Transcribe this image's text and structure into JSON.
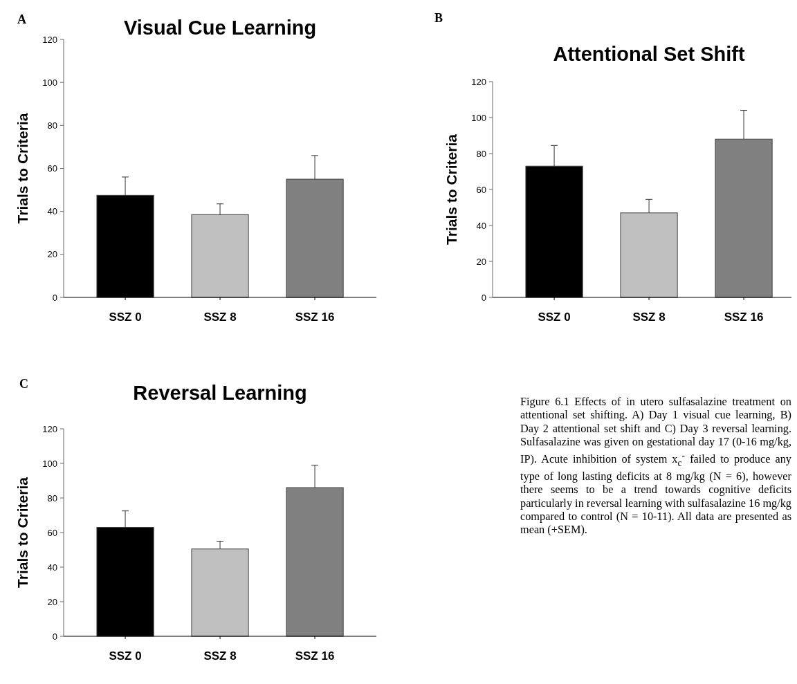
{
  "chart_data": [
    {
      "type": "bar",
      "title": "Visual Cue Learning",
      "ylabel": "Trials to Criteria",
      "categories": [
        "SSZ 0",
        "SSZ 8",
        "SSZ 16"
      ],
      "values": [
        47.5,
        38.5,
        55
      ],
      "errors": [
        [
          47.5,
          56
        ],
        [
          38.5,
          43.5
        ],
        [
          55,
          66
        ]
      ],
      "colors": [
        "#000000",
        "#c0c0c0",
        "#808080"
      ],
      "ylim": [
        0,
        120
      ],
      "yticks": [
        0,
        20,
        40,
        60,
        80,
        100,
        120
      ],
      "annotations": [
        "A"
      ]
    },
    {
      "type": "bar",
      "title": "Attentional Set Shift",
      "ylabel": "Trials to Criteria",
      "categories": [
        "SSZ 0",
        "SSZ 8",
        "SSZ 16"
      ],
      "values": [
        73,
        47,
        88
      ],
      "errors": [
        [
          73,
          84.5
        ],
        [
          47,
          54.5
        ],
        [
          88,
          104
        ]
      ],
      "colors": [
        "#000000",
        "#c0c0c0",
        "#808080"
      ],
      "ylim": [
        0,
        120
      ],
      "yticks": [
        0,
        20,
        40,
        60,
        80,
        100,
        120
      ],
      "annotations": [
        "B"
      ]
    },
    {
      "type": "bar",
      "title": "Reversal Learning",
      "ylabel": "Trials to Criteria",
      "categories": [
        "SSZ 0",
        "SSZ 8",
        "SSZ 16"
      ],
      "values": [
        63,
        50.5,
        86
      ],
      "errors": [
        [
          63,
          72.5
        ],
        [
          50.5,
          55
        ],
        [
          86,
          99
        ]
      ],
      "colors": [
        "#000000",
        "#c0c0c0",
        "#808080"
      ],
      "ylim": [
        0,
        120
      ],
      "yticks": [
        0,
        20,
        40,
        60,
        80,
        100,
        120
      ],
      "annotations": [
        "C"
      ]
    },
    {
      "type": "other",
      "annotations": [
        "Figure 6.1 Effects of in utero sulfasalazine treatment on attentional set shifting.  A) Day 1 visual cue learning, B) Day 2 attentional set shift and C) Day 3 reversal learning. Sulfasalazine was given on gestational day 17 (0-16 mg/kg, IP). Acute inhibition of system x$_{c}$$^{-}$ failed to produce any type of long lasting deficits at 8 mg/kg (N = 6), however there seems to be a trend towards cognitive deficits particularly in reversal learning with sulfasalazine 16 mg/kg compared to control (N = 10-11).  All data are presented as mean (+SEM)."
      ]
    }
  ]
}
